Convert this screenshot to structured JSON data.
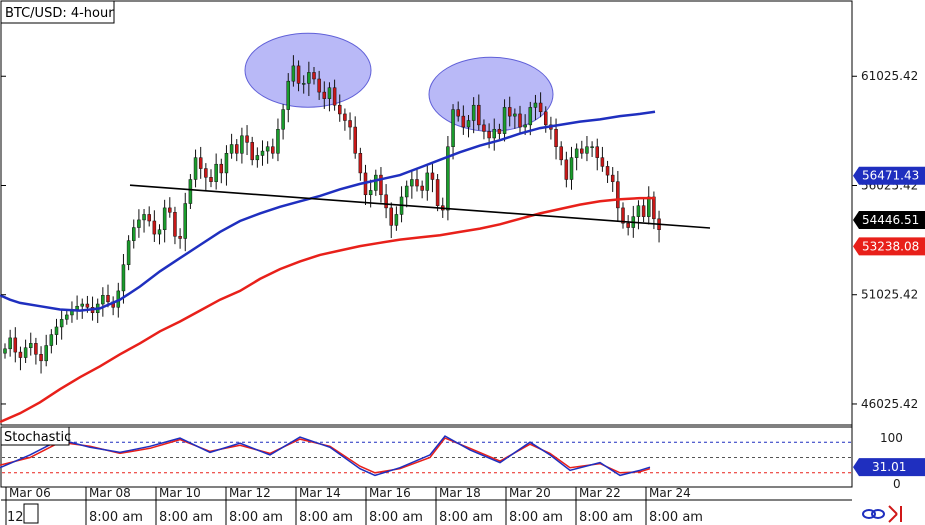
{
  "chart_data": {
    "type": "candlestick",
    "title": "BTC/USD: 4-hour",
    "x_axis": {
      "date_labels": [
        "Mar 06",
        "Mar 08",
        "Mar 10",
        "Mar 12",
        "Mar 14",
        "Mar 16",
        "Mar 18",
        "Mar 20",
        "Mar 22",
        "Mar 24"
      ],
      "time_labels": [
        "12",
        "8:00 am",
        "8:00 am",
        "8:00 am",
        "8:00 am",
        "8:00 am",
        "8:00 am",
        "8:00 am",
        "8:00 am",
        "8:00 am"
      ]
    },
    "y_axis": {
      "ticks": [
        "61025.42",
        "56025.42",
        "51025.42",
        "46025.42"
      ],
      "range": [
        45200,
        63600
      ]
    },
    "price_badges": [
      {
        "value": "56471.43",
        "color": "#1f2fbf",
        "text_color": "#ffffff"
      },
      {
        "value": "54446.51",
        "color": "#000000",
        "text_color": "#ffffff"
      },
      {
        "value": "53238.08",
        "color": "#e8201a",
        "text_color": "#ffffff"
      }
    ],
    "candles_close": [
      48550,
      49050,
      48400,
      48150,
      48600,
      48800,
      48300,
      48000,
      48700,
      49200,
      49550,
      49900,
      50100,
      50350,
      50500,
      50600,
      50450,
      50200,
      50600,
      51000,
      50700,
      50450,
      51200,
      52400,
      53500,
      54100,
      54450,
      54700,
      54400,
      53800,
      54000,
      55000,
      54800,
      53700,
      53600,
      55200,
      56300,
      57300,
      56800,
      56400,
      56200,
      57000,
      56600,
      57500,
      57900,
      57500,
      58300,
      58000,
      57200,
      57400,
      57600,
      57800,
      57500,
      58600,
      59500,
      60800,
      61500,
      60700,
      60700,
      61200,
      60900,
      60300,
      60000,
      60500,
      59700,
      59300,
      59000,
      58700,
      57500,
      56600,
      55600,
      55800,
      56500,
      55600,
      55000,
      54200,
      54700,
      55500,
      56000,
      56300,
      56000,
      55800,
      56600,
      56300,
      55100,
      54900,
      57800,
      59500,
      59200,
      58700,
      59000,
      59700,
      58800,
      58500,
      58200,
      58600,
      58400,
      59600,
      59200,
      59300,
      58700,
      58800,
      59600,
      59800,
      59400,
      58800,
      58600,
      57800,
      57200,
      56300,
      57300,
      57700,
      57500,
      57800,
      57800,
      57300,
      56900,
      56500,
      56200,
      55000,
      54300,
      54100,
      54600,
      55100,
      54600,
      55500,
      54500,
      54000
    ],
    "sma_100": [
      [
        0,
        51000
      ],
      [
        10,
        50800
      ],
      [
        20,
        50650
      ],
      [
        40,
        50500
      ],
      [
        60,
        50350
      ],
      [
        80,
        50300
      ],
      [
        100,
        50400
      ],
      [
        120,
        50800
      ],
      [
        140,
        51400
      ],
      [
        160,
        52100
      ],
      [
        180,
        52700
      ],
      [
        200,
        53300
      ],
      [
        220,
        53900
      ],
      [
        240,
        54400
      ],
      [
        260,
        54750
      ],
      [
        280,
        55050
      ],
      [
        300,
        55300
      ],
      [
        320,
        55550
      ],
      [
        340,
        55850
      ],
      [
        360,
        56100
      ],
      [
        380,
        56300
      ],
      [
        400,
        56500
      ],
      [
        420,
        56850
      ],
      [
        440,
        57200
      ],
      [
        460,
        57550
      ],
      [
        480,
        57850
      ],
      [
        500,
        58100
      ],
      [
        520,
        58400
      ],
      [
        540,
        58650
      ],
      [
        560,
        58800
      ],
      [
        580,
        58950
      ],
      [
        600,
        59050
      ],
      [
        620,
        59200
      ],
      [
        640,
        59300
      ],
      [
        655,
        59400
      ]
    ],
    "sma_200": [
      [
        0,
        45200
      ],
      [
        20,
        45600
      ],
      [
        40,
        46100
      ],
      [
        60,
        46700
      ],
      [
        80,
        47250
      ],
      [
        100,
        47750
      ],
      [
        120,
        48300
      ],
      [
        140,
        48800
      ],
      [
        160,
        49350
      ],
      [
        180,
        49800
      ],
      [
        200,
        50300
      ],
      [
        220,
        50800
      ],
      [
        240,
        51200
      ],
      [
        260,
        51750
      ],
      [
        280,
        52200
      ],
      [
        300,
        52550
      ],
      [
        320,
        52850
      ],
      [
        340,
        53050
      ],
      [
        360,
        53250
      ],
      [
        380,
        53400
      ],
      [
        400,
        53550
      ],
      [
        420,
        53650
      ],
      [
        440,
        53750
      ],
      [
        460,
        53900
      ],
      [
        480,
        54050
      ],
      [
        500,
        54250
      ],
      [
        520,
        54500
      ],
      [
        540,
        54750
      ],
      [
        560,
        54950
      ],
      [
        580,
        55150
      ],
      [
        600,
        55300
      ],
      [
        620,
        55400
      ],
      [
        640,
        55450
      ],
      [
        655,
        55450
      ]
    ],
    "neckline": {
      "from": [
        130,
        56040
      ],
      "to": [
        710,
        54080
      ]
    },
    "annotations": [
      {
        "shape": "ellipse",
        "label": "left peak",
        "cx": 308,
        "cy": 61300
      },
      {
        "shape": "ellipse",
        "label": "right peak",
        "cx": 491,
        "cy": 60200
      }
    ],
    "stochastic": {
      "label": "Stochastic",
      "ticks": [
        "100",
        "0"
      ],
      "levels": [
        80,
        50,
        20
      ],
      "current_value": "31.01",
      "k_line": [
        [
          0,
          30
        ],
        [
          30,
          55
        ],
        [
          60,
          85
        ],
        [
          90,
          70
        ],
        [
          120,
          60
        ],
        [
          150,
          72
        ],
        [
          180,
          88
        ],
        [
          210,
          60
        ],
        [
          240,
          78
        ],
        [
          270,
          55
        ],
        [
          300,
          90
        ],
        [
          330,
          70
        ],
        [
          360,
          28
        ],
        [
          375,
          15
        ],
        [
          400,
          30
        ],
        [
          430,
          55
        ],
        [
          445,
          92
        ],
        [
          470,
          65
        ],
        [
          500,
          40
        ],
        [
          530,
          80
        ],
        [
          550,
          55
        ],
        [
          570,
          25
        ],
        [
          600,
          40
        ],
        [
          620,
          15
        ],
        [
          640,
          25
        ],
        [
          650,
          31
        ]
      ],
      "d_line": [
        [
          0,
          35
        ],
        [
          30,
          50
        ],
        [
          60,
          80
        ],
        [
          90,
          72
        ],
        [
          120,
          58
        ],
        [
          150,
          68
        ],
        [
          180,
          85
        ],
        [
          210,
          62
        ],
        [
          240,
          74
        ],
        [
          270,
          58
        ],
        [
          300,
          86
        ],
        [
          330,
          72
        ],
        [
          360,
          33
        ],
        [
          375,
          20
        ],
        [
          400,
          28
        ],
        [
          430,
          50
        ],
        [
          445,
          88
        ],
        [
          470,
          68
        ],
        [
          500,
          43
        ],
        [
          530,
          76
        ],
        [
          550,
          58
        ],
        [
          570,
          30
        ],
        [
          600,
          38
        ],
        [
          620,
          20
        ],
        [
          640,
          22
        ],
        [
          650,
          28
        ]
      ]
    },
    "colors": {
      "bull": "#1a9c2c",
      "bear": "#c81818",
      "sma_fast": "#1f2fbf",
      "sma_slow": "#e8201a",
      "ellipse": "#7f7ff0",
      "k": "#1f2fbf",
      "d": "#e8201a"
    }
  },
  "toolbar_icons": [
    "link-icon",
    "arrow-icon"
  ]
}
